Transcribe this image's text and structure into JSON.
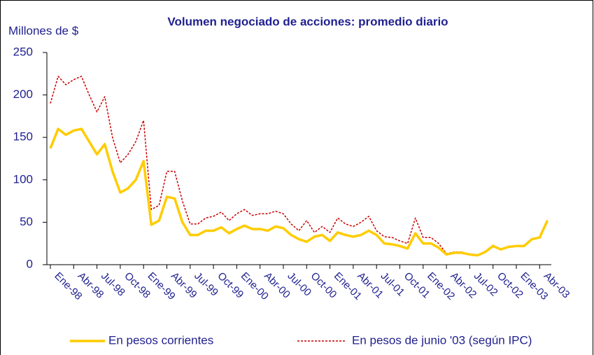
{
  "chart_data": {
    "type": "line",
    "title": "Volumen negociado de acciones: promedio diario",
    "y_label": "Millones de $",
    "categories": [
      "Ene-98",
      null,
      null,
      "Abr-98",
      null,
      null,
      "Jul-98",
      null,
      null,
      "Oct-98",
      null,
      null,
      "Ene-99",
      null,
      null,
      "Abr-99",
      null,
      null,
      "Jul-99",
      null,
      null,
      "Oct-99",
      null,
      null,
      "Ene-00",
      null,
      null,
      "Abr-00",
      null,
      null,
      "Jul-00",
      null,
      null,
      "Oct-00",
      null,
      null,
      "Ene-01",
      null,
      null,
      "Abr-01",
      null,
      null,
      "Jul-01",
      null,
      null,
      "Oct-01",
      null,
      null,
      "Ene-02",
      null,
      null,
      "Abr-02",
      null,
      null,
      "Jul-02",
      null,
      null,
      "Oct-02",
      null,
      null,
      "Ene-03",
      null,
      null,
      "Abr-03",
      null
    ],
    "series": [
      {
        "name": "En pesos corrientes",
        "color": "#ffcc00",
        "style": "solid",
        "values": [
          137,
          160,
          153,
          158,
          160,
          145,
          130,
          142,
          110,
          85,
          90,
          100,
          122,
          47,
          52,
          80,
          78,
          50,
          35,
          35,
          40,
          40,
          44,
          37,
          42,
          46,
          42,
          42,
          40,
          45,
          43,
          35,
          30,
          27,
          33,
          35,
          28,
          38,
          35,
          33,
          35,
          40,
          35,
          25,
          24,
          22,
          19,
          37,
          25,
          25,
          20,
          12,
          14,
          14,
          12,
          11,
          15,
          22,
          18,
          21,
          22,
          22,
          30,
          32,
          52
        ]
      },
      {
        "name": "En pesos de junio '03 (según IPC)",
        "color": "#cc0000",
        "style": "dashed",
        "values": [
          190,
          222,
          212,
          218,
          222,
          200,
          180,
          198,
          150,
          120,
          130,
          145,
          170,
          65,
          70,
          110,
          110,
          75,
          48,
          48,
          55,
          57,
          62,
          52,
          60,
          65,
          58,
          60,
          60,
          63,
          60,
          48,
          40,
          52,
          38,
          45,
          38,
          55,
          48,
          45,
          50,
          57,
          40,
          33,
          32,
          28,
          25,
          55,
          32,
          32,
          25,
          13,
          15,
          15,
          12,
          11,
          16,
          23,
          18,
          21,
          22,
          22,
          30,
          32,
          52
        ]
      }
    ],
    "ylim": [
      0,
      250
    ],
    "yticks": [
      0,
      50,
      100,
      150,
      200,
      250
    ]
  }
}
